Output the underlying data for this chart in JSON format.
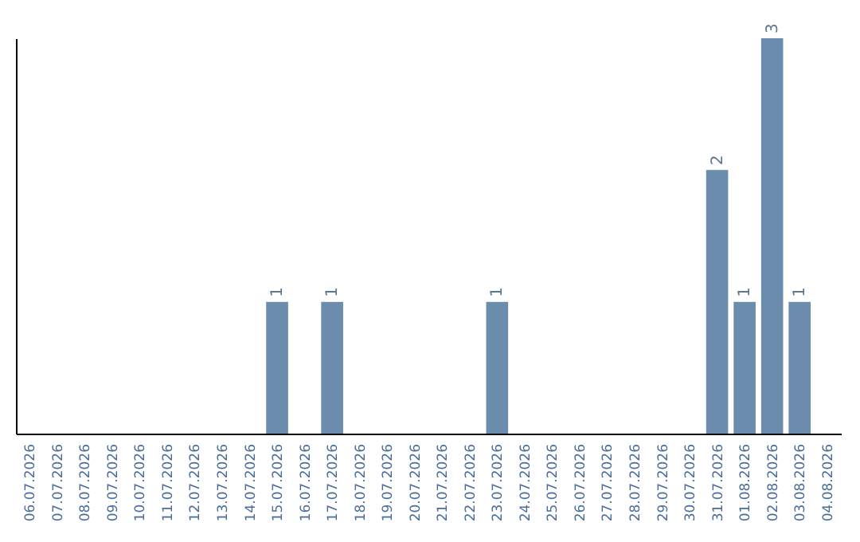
{
  "chart_data": {
    "type": "bar",
    "categories": [
      "06.07.2026",
      "07.07.2026",
      "08.07.2026",
      "09.07.2026",
      "10.07.2026",
      "11.07.2026",
      "12.07.2026",
      "13.07.2026",
      "14.07.2026",
      "15.07.2026",
      "16.07.2026",
      "17.07.2026",
      "18.07.2026",
      "19.07.2026",
      "20.07.2026",
      "21.07.2026",
      "22.07.2026",
      "23.07.2026",
      "24.07.2026",
      "25.07.2026",
      "26.07.2026",
      "27.07.2026",
      "28.07.2026",
      "29.07.2026",
      "30.07.2026",
      "31.07.2026",
      "01.08.2026",
      "02.08.2026",
      "03.08.2026",
      "04.08.2026"
    ],
    "values": [
      0,
      0,
      0,
      0,
      0,
      0,
      0,
      0,
      0,
      1,
      0,
      1,
      0,
      0,
      0,
      0,
      0,
      1,
      0,
      0,
      0,
      0,
      0,
      0,
      0,
      2,
      1,
      3,
      1,
      0
    ],
    "value_labels": [
      null,
      null,
      null,
      null,
      null,
      null,
      null,
      null,
      null,
      "1",
      null,
      "1",
      null,
      null,
      null,
      null,
      null,
      "1",
      null,
      null,
      null,
      null,
      null,
      null,
      null,
      "2",
      "1",
      "3",
      "1",
      null
    ],
    "color": "#6b8cac",
    "grid": false,
    "tick_labels": "x"
  }
}
